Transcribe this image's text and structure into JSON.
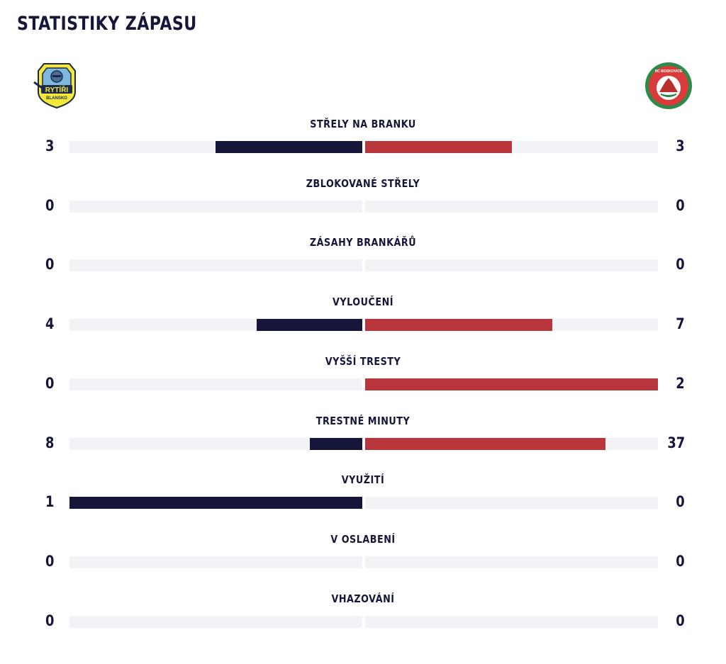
{
  "page": {
    "title": "STATISTIKY ZÁPASU"
  },
  "teams": {
    "home": {
      "logo_icon": "rytiri-blansko-logo",
      "logo_text_main": "RYTÍŘI",
      "logo_text_sub": "BLANSKO",
      "color": "#16163a"
    },
    "away": {
      "logo_icon": "hc-boskovice-logo",
      "logo_text": "HC BOSKOVICE",
      "color": "#b8363b"
    }
  },
  "stats": [
    {
      "label": "STŘELY NA BRANKU",
      "home": "3",
      "away": "3",
      "home_fill": 0.5,
      "away_fill": 0.5
    },
    {
      "label": "ZBLOKOVANÉ STŘELY",
      "home": "0",
      "away": "0",
      "home_fill": 0,
      "away_fill": 0
    },
    {
      "label": "ZÁSAHY BRANKÁŘŮ",
      "home": "0",
      "away": "0",
      "home_fill": 0,
      "away_fill": 0
    },
    {
      "label": "VYLOUČENÍ",
      "home": "4",
      "away": "7",
      "home_fill": 0.36,
      "away_fill": 0.64
    },
    {
      "label": "VYŠŠÍ TRESTY",
      "home": "0",
      "away": "2",
      "home_fill": 0,
      "away_fill": 1
    },
    {
      "label": "TRESTNÉ MINUTY",
      "home": "8",
      "away": "37",
      "home_fill": 0.18,
      "away_fill": 0.82
    },
    {
      "label": "VYUŽITÍ",
      "home": "1",
      "away": "0",
      "home_fill": 1,
      "away_fill": 0
    },
    {
      "label": "V OSLABENÍ",
      "home": "0",
      "away": "0",
      "home_fill": 0,
      "away_fill": 0
    },
    {
      "label": "VHAZOVÁNÍ",
      "home": "0",
      "away": "0",
      "home_fill": 0,
      "away_fill": 0
    }
  ]
}
